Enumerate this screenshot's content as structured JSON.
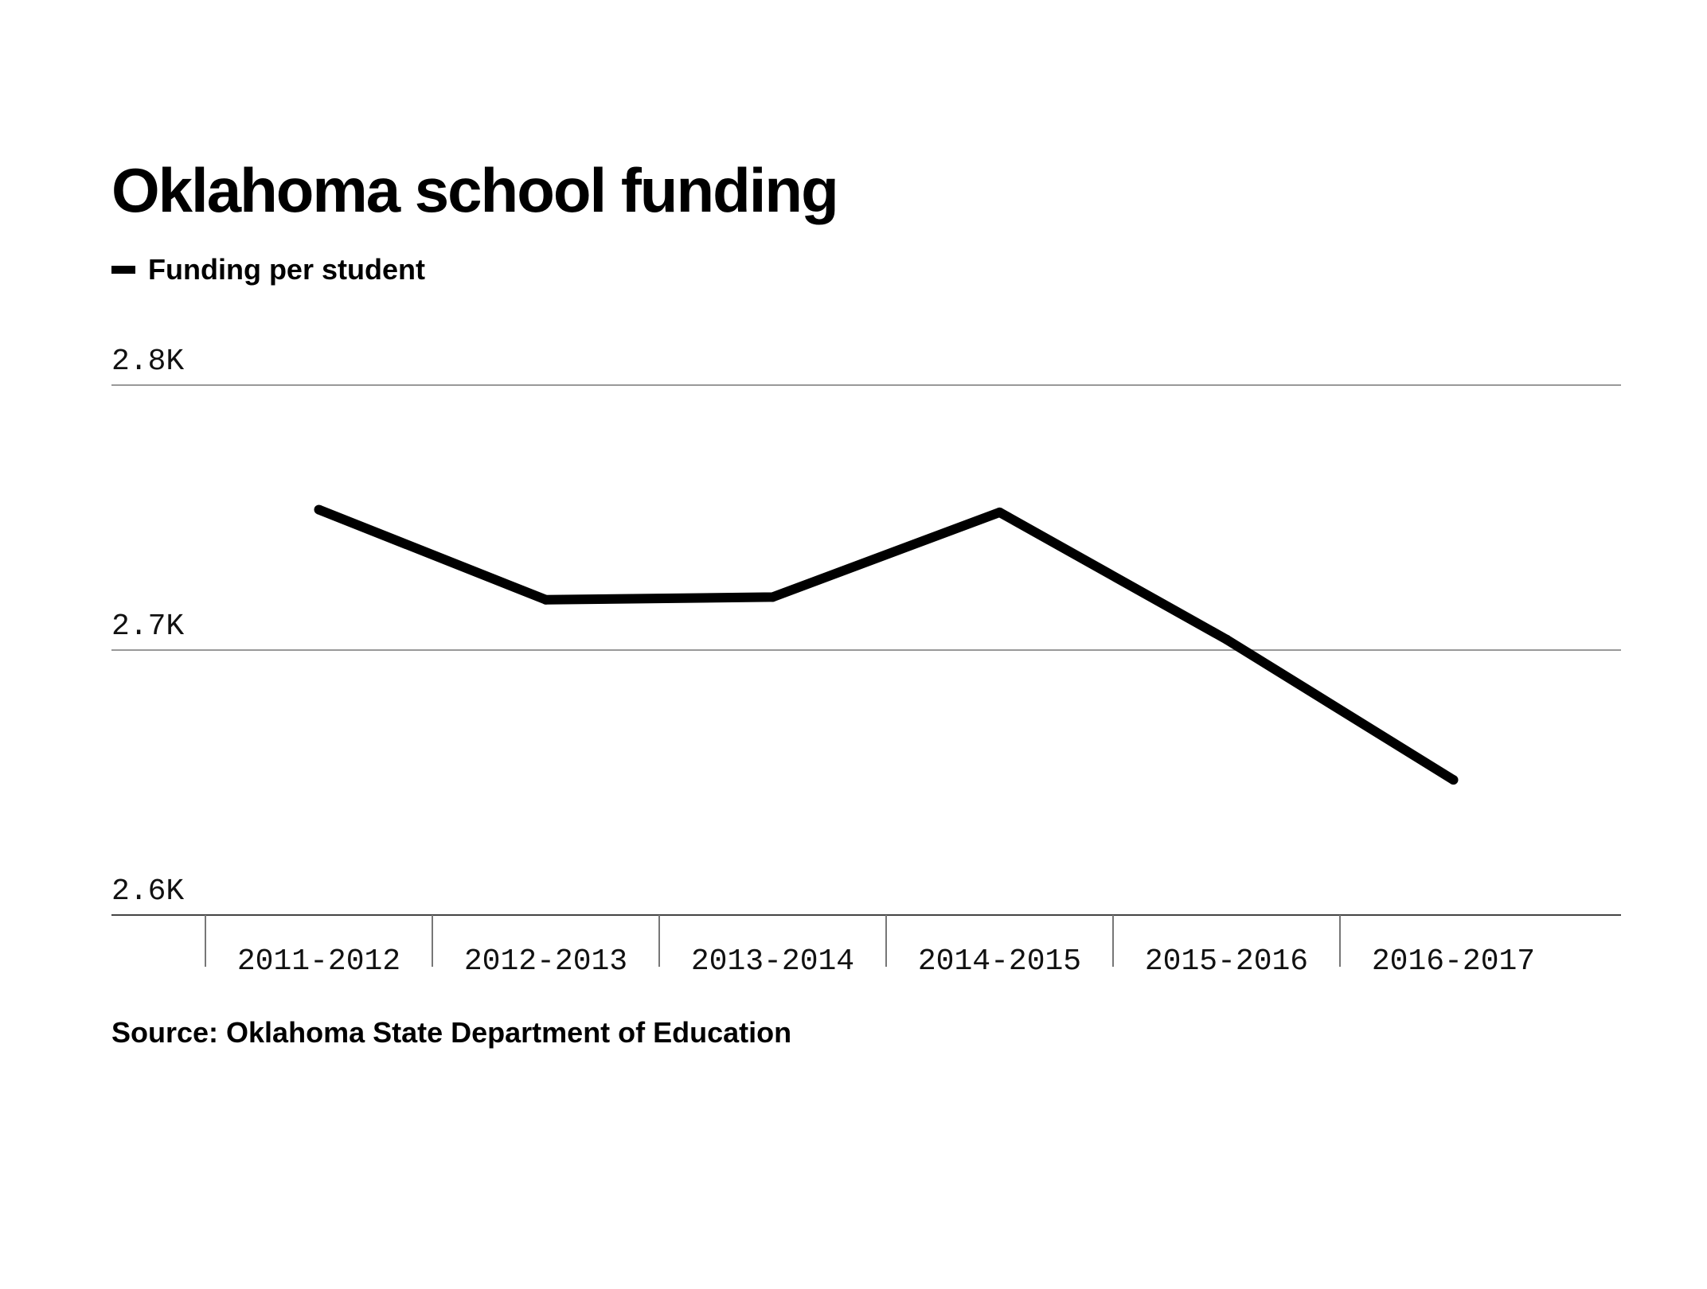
{
  "chart_data": {
    "type": "line",
    "title": "Oklahoma school funding",
    "xlabel": "",
    "ylabel": "",
    "categories": [
      "2011-2012",
      "2012-2013",
      "2013-2014",
      "2014-2015",
      "2015-2016",
      "2016-2017"
    ],
    "series": [
      {
        "name": "Funding per student",
        "values": [
          2753,
          2719,
          2720,
          2752,
          2704,
          2651
        ]
      }
    ],
    "ylim": [
      2600,
      2800
    ],
    "yticks": [
      2600,
      2700,
      2800
    ],
    "ytick_labels": [
      "2.6K",
      "2.7K",
      "2.8K"
    ],
    "grid": true,
    "legend_position": "top-left",
    "line_color": "#000000",
    "grid_color": "#999999"
  },
  "source": "Source: Oklahoma State Department of Education"
}
